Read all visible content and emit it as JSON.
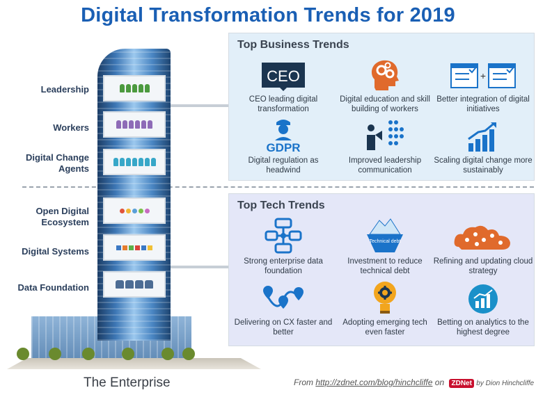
{
  "title": "Digital Transformation Trends for 2019",
  "layers": [
    {
      "label": "Leadership"
    },
    {
      "label": "Workers"
    },
    {
      "label": "Digital Change\nAgents"
    },
    {
      "label": "Open Digital\nEcosystem"
    },
    {
      "label": "Digital Systems"
    },
    {
      "label": "Data Foundation"
    }
  ],
  "building_caption": "The Enterprise",
  "business": {
    "title": "Top Business Trends",
    "trends": [
      {
        "icon": "ceo-icon",
        "label": "CEO leading digital transformation",
        "icon_text": "CEO"
      },
      {
        "icon": "brain-gears-icon",
        "label": "Digital education and skill building of workers"
      },
      {
        "icon": "checklist-integration-icon",
        "label": "Better integration of digital initiatives"
      },
      {
        "icon": "gdpr-officer-icon",
        "label": "Digital regulation as headwind",
        "icon_text": "GDPR"
      },
      {
        "icon": "megaphone-audience-icon",
        "label": "Improved leadership communication"
      },
      {
        "icon": "growth-chart-icon",
        "label": "Scaling digital change more sustainably"
      }
    ]
  },
  "tech": {
    "title": "Top Tech Trends",
    "trends": [
      {
        "icon": "database-network-icon",
        "label": "Strong enterprise data foundation"
      },
      {
        "icon": "iceberg-icon",
        "label": "Investment to reduce technical debt",
        "icon_text": "Technical debt"
      },
      {
        "icon": "cloud-network-icon",
        "label": "Refining and updating cloud strategy"
      },
      {
        "icon": "route-pins-icon",
        "label": "Delivering on CX faster and better"
      },
      {
        "icon": "lightbulb-gear-icon",
        "label": "Adopting emerging tech even faster"
      },
      {
        "icon": "analytics-chart-icon",
        "label": "Betting on analytics to the highest degree"
      }
    ]
  },
  "footer": {
    "prefix": "From",
    "url": "http://zdnet.com/blog/hinchcliffe",
    "on": "on",
    "brand": "ZDNet",
    "byline": "by Dion Hinchcliffe"
  },
  "colors": {
    "title": "#1a5fb4",
    "business_panel": "#e2eff9",
    "tech_panel": "#e4e7f8",
    "icon_blue": "#1a73c9",
    "icon_orange": "#e06a2c"
  }
}
